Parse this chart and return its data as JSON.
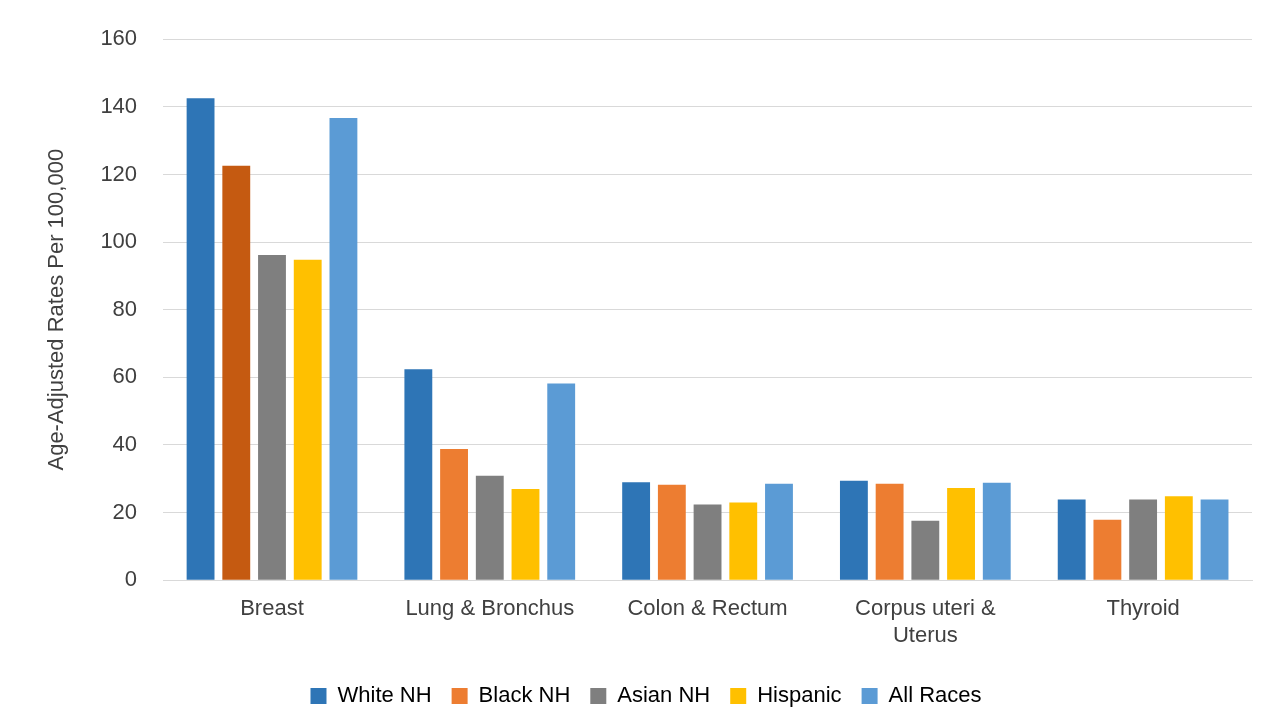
{
  "chart_data": {
    "type": "bar",
    "ylabel": "Age-Adjusted Rates Per 100,000",
    "categories": [
      "Breast",
      "Lung & Bronchus",
      "Colon & Rectum",
      "Corpus uteri & Uterus",
      "Thyroid"
    ],
    "series": [
      {
        "name": "White NH",
        "color": "#2e75b6",
        "values": [
          142.5,
          62.4,
          29,
          29.4,
          23.9
        ]
      },
      {
        "name": "Black NH",
        "color": "#ed7d31",
        "colors": [
          "#c55a11",
          "#ed7d31",
          "#ed7d31",
          "#ed7d31",
          "#ed7d31"
        ],
        "values": [
          122.6,
          38.8,
          28.2,
          28.5,
          17.9
        ]
      },
      {
        "name": "Asian NH",
        "color": "#7f7f7f",
        "values": [
          96.2,
          30.9,
          22.4,
          17.6,
          23.9
        ]
      },
      {
        "name": "Hispanic",
        "color": "#ffc000",
        "values": [
          94.8,
          27,
          23,
          27.3,
          24.8
        ]
      },
      {
        "name": "All Races",
        "color": "#5b9bd5",
        "values": [
          136.7,
          58.2,
          28.5,
          28.8,
          23.9
        ]
      }
    ],
    "ylim": [
      0,
      160
    ],
    "yticks": [
      0,
      20,
      40,
      60,
      80,
      100,
      120,
      140,
      160
    ],
    "grid": "y",
    "legend": "bottom"
  }
}
